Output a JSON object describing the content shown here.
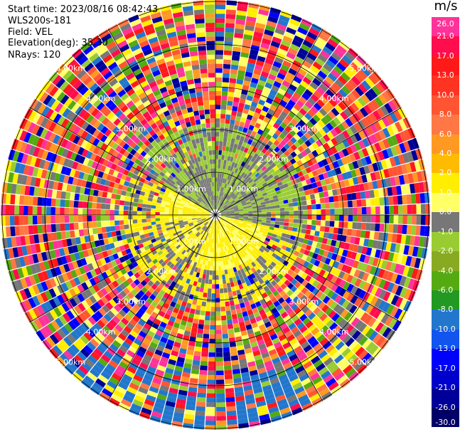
{
  "info": {
    "start_time": "Start time: 2023/08/16 08:42:43",
    "instrument": "WLS200s-181",
    "field": "Field: VEL",
    "elevation": "Elevation(deg): 35.30",
    "nrays": "NRays: 120"
  },
  "colorbar": {
    "unit": "m/s",
    "ticks": [
      "26.0",
      "21.0",
      "17.0",
      "13.0",
      "10.0",
      "8.0",
      "6.0",
      "4.0",
      "2.0",
      "1.0",
      "0.0",
      "-1.0",
      "-2.0",
      "-4.0",
      "-6.0",
      "-8.0",
      "-10.0",
      "-13.0",
      "-17.0",
      "-21.0",
      "-26.0",
      "-30.0"
    ],
    "colors": [
      "#ff3399",
      "#ff0d4d",
      "#ff1a1a",
      "#ff3322",
      "#ff5533",
      "#ff7744",
      "#ff9922",
      "#ffbb00",
      "#ffee00",
      "#ffff66",
      "#777777",
      "#99cc33",
      "#88aa22",
      "#55aa11",
      "#229922",
      "#2277cc",
      "#1155ee",
      "#0000ff",
      "#0000cc",
      "#000099",
      "#000066"
    ]
  },
  "range_labels": [
    "1.00km",
    "2.00km",
    "3.00km",
    "4.00km",
    "5.00km"
  ],
  "chart_data": {
    "type": "heatmap",
    "title": "",
    "projection": "polar PPI",
    "rays": 120,
    "range_rings_km": [
      1,
      2,
      3,
      4,
      5
    ],
    "value_range_mps": [
      -30,
      26
    ],
    "description_of_pattern": "near-field gates dominated by grey (0 m/s) and green (-1 to -2 m/s) to the north, yellow (1 to 2 m/s) to the south and west; outer gates noisy with mixed colors"
  }
}
